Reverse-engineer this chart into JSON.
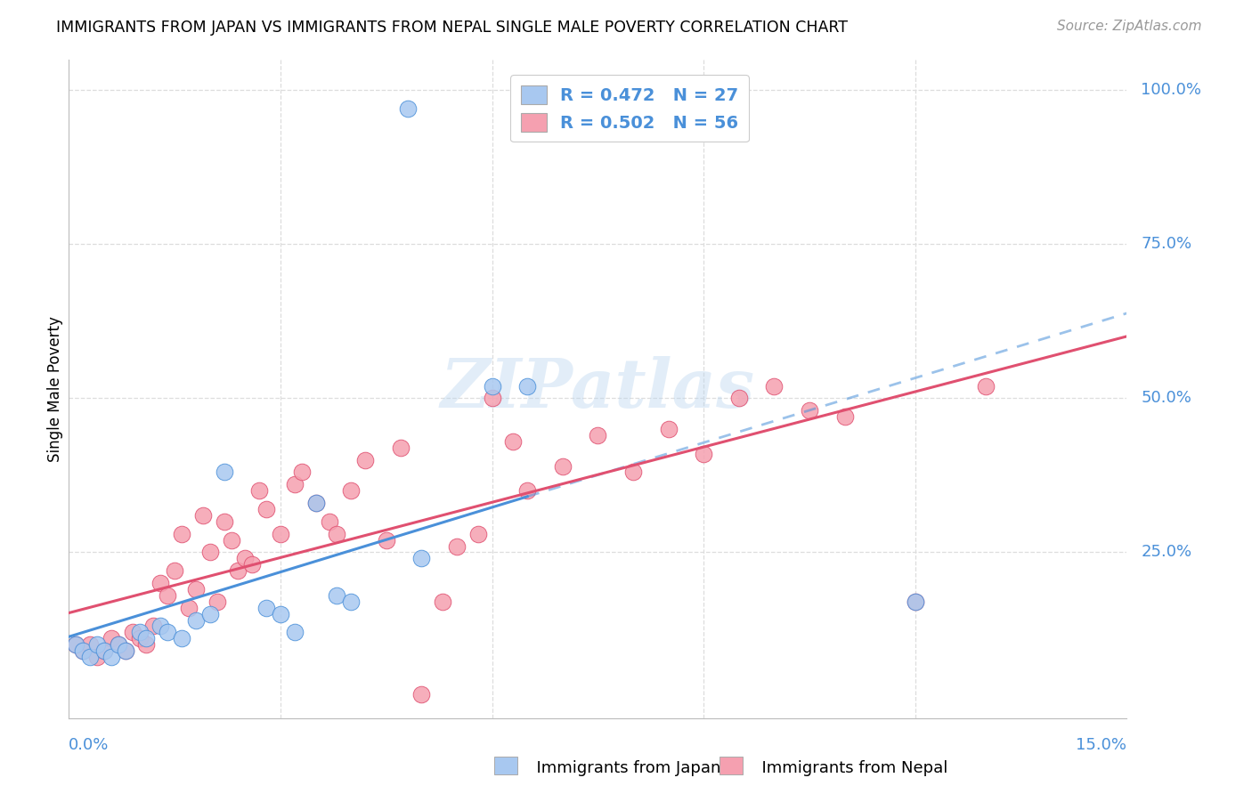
{
  "title": "IMMIGRANTS FROM JAPAN VS IMMIGRANTS FROM NEPAL SINGLE MALE POVERTY CORRELATION CHART",
  "source": "Source: ZipAtlas.com",
  "ylabel": "Single Male Poverty",
  "yticks": [
    0.0,
    0.25,
    0.5,
    0.75,
    1.0
  ],
  "ytick_labels": [
    "",
    "25.0%",
    "50.0%",
    "75.0%",
    "100.0%"
  ],
  "xlim": [
    0.0,
    0.15
  ],
  "ylim": [
    -0.02,
    1.05
  ],
  "legend_japan": "R = 0.472   N = 27",
  "legend_nepal": "R = 0.502   N = 56",
  "japan_color": "#a8c8f0",
  "nepal_color": "#f5a0b0",
  "japan_line_color": "#4a90d9",
  "nepal_line_color": "#e05070",
  "japan_scatter_x": [
    0.001,
    0.002,
    0.003,
    0.004,
    0.005,
    0.006,
    0.007,
    0.008,
    0.01,
    0.011,
    0.013,
    0.014,
    0.016,
    0.018,
    0.02,
    0.022,
    0.028,
    0.03,
    0.032,
    0.035,
    0.038,
    0.04,
    0.05,
    0.06,
    0.065,
    0.12,
    0.048
  ],
  "japan_scatter_y": [
    0.1,
    0.09,
    0.08,
    0.1,
    0.09,
    0.08,
    0.1,
    0.09,
    0.12,
    0.11,
    0.13,
    0.12,
    0.11,
    0.14,
    0.15,
    0.38,
    0.16,
    0.15,
    0.12,
    0.33,
    0.18,
    0.17,
    0.24,
    0.52,
    0.52,
    0.17,
    0.97
  ],
  "nepal_scatter_x": [
    0.001,
    0.002,
    0.003,
    0.004,
    0.005,
    0.006,
    0.007,
    0.008,
    0.009,
    0.01,
    0.011,
    0.012,
    0.013,
    0.014,
    0.015,
    0.016,
    0.017,
    0.018,
    0.019,
    0.02,
    0.021,
    0.022,
    0.023,
    0.024,
    0.025,
    0.026,
    0.027,
    0.028,
    0.03,
    0.032,
    0.033,
    0.035,
    0.037,
    0.038,
    0.04,
    0.042,
    0.045,
    0.047,
    0.05,
    0.053,
    0.055,
    0.058,
    0.06,
    0.063,
    0.065,
    0.07,
    0.075,
    0.08,
    0.085,
    0.09,
    0.095,
    0.1,
    0.105,
    0.11,
    0.12,
    0.13
  ],
  "nepal_scatter_y": [
    0.1,
    0.09,
    0.1,
    0.08,
    0.09,
    0.11,
    0.1,
    0.09,
    0.12,
    0.11,
    0.1,
    0.13,
    0.2,
    0.18,
    0.22,
    0.28,
    0.16,
    0.19,
    0.31,
    0.25,
    0.17,
    0.3,
    0.27,
    0.22,
    0.24,
    0.23,
    0.35,
    0.32,
    0.28,
    0.36,
    0.38,
    0.33,
    0.3,
    0.28,
    0.35,
    0.4,
    0.27,
    0.42,
    0.02,
    0.17,
    0.26,
    0.28,
    0.5,
    0.43,
    0.35,
    0.39,
    0.44,
    0.38,
    0.45,
    0.41,
    0.5,
    0.52,
    0.48,
    0.47,
    0.17,
    0.52
  ],
  "japan_reg": [
    -0.07,
    7.0
  ],
  "nepal_reg": [
    0.08,
    3.0
  ],
  "grid_color": "#dddddd",
  "grid_yticks": [
    0.25,
    0.5,
    0.75,
    1.0
  ]
}
